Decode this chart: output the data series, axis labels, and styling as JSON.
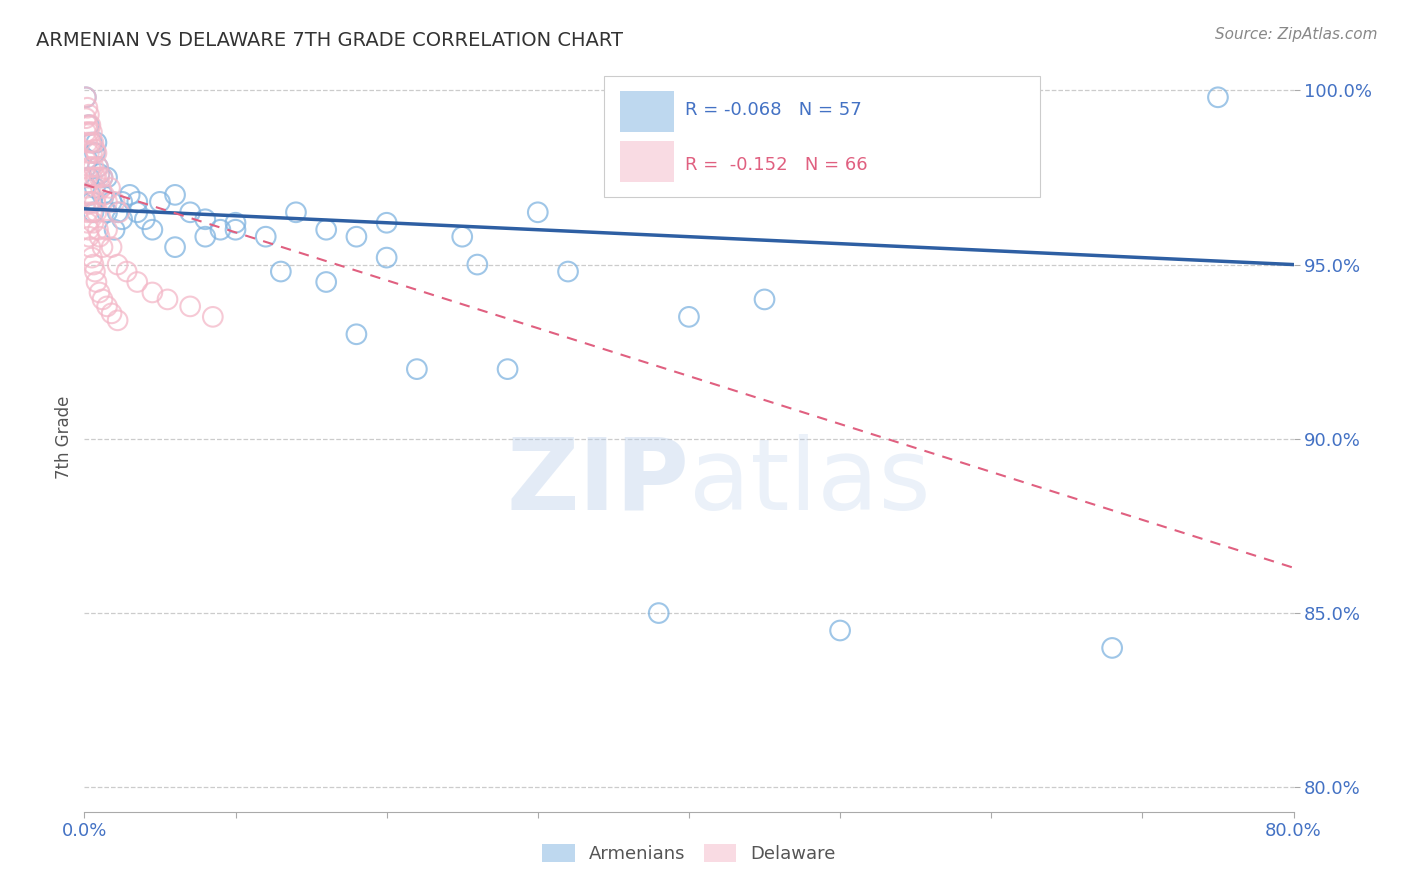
{
  "title": "ARMENIAN VS DELAWARE 7TH GRADE CORRELATION CHART",
  "source": "Source: ZipAtlas.com",
  "ylabel_label": "7th Grade",
  "xlim": [
    0.0,
    0.8
  ],
  "ylim": [
    0.793,
    1.008
  ],
  "ytick_positions": [
    0.8,
    0.85,
    0.9,
    0.95,
    1.0
  ],
  "ytick_labels": [
    "80.0%",
    "85.0%",
    "90.0%",
    "95.0%",
    "100.0%"
  ],
  "xtick_positions": [
    0.0,
    0.1,
    0.2,
    0.3,
    0.4,
    0.5,
    0.6,
    0.7,
    0.8
  ],
  "xtick_labels": [
    "0.0%",
    "",
    "",
    "",
    "",
    "",
    "",
    "",
    "80.0%"
  ],
  "grid_color": "#cccccc",
  "background_color": "#ffffff",
  "blue_color": "#7fb3e0",
  "pink_color": "#f4b8c8",
  "blue_line_color": "#2e5fa3",
  "pink_line_color": "#e06080",
  "R_blue": -0.068,
  "N_blue": 57,
  "R_pink": -0.152,
  "N_pink": 66,
  "blue_line_x0": 0.0,
  "blue_line_y0": 0.966,
  "blue_line_x1": 0.8,
  "blue_line_y1": 0.95,
  "pink_line_x0": 0.0,
  "pink_line_y0": 0.973,
  "pink_line_x1": 0.8,
  "pink_line_y1": 0.863,
  "blue_x": [
    0.001,
    0.002,
    0.003,
    0.004,
    0.005,
    0.006,
    0.007,
    0.008,
    0.01,
    0.012,
    0.015,
    0.018,
    0.022,
    0.025,
    0.03,
    0.035,
    0.04,
    0.05,
    0.06,
    0.07,
    0.08,
    0.09,
    0.1,
    0.12,
    0.14,
    0.16,
    0.18,
    0.2,
    0.25,
    0.3,
    0.003,
    0.005,
    0.007,
    0.009,
    0.012,
    0.015,
    0.02,
    0.025,
    0.035,
    0.045,
    0.06,
    0.08,
    0.1,
    0.13,
    0.16,
    0.2,
    0.26,
    0.32,
    0.4,
    0.45,
    0.18,
    0.22,
    0.28,
    0.38,
    0.5,
    0.68,
    0.75
  ],
  "blue_y": [
    0.998,
    0.98,
    0.975,
    0.97,
    0.968,
    0.965,
    0.972,
    0.985,
    0.976,
    0.97,
    0.975,
    0.968,
    0.965,
    0.968,
    0.97,
    0.965,
    0.963,
    0.968,
    0.97,
    0.965,
    0.963,
    0.96,
    0.962,
    0.958,
    0.965,
    0.96,
    0.958,
    0.962,
    0.958,
    0.965,
    0.99,
    0.985,
    0.982,
    0.978,
    0.975,
    0.965,
    0.96,
    0.963,
    0.968,
    0.96,
    0.955,
    0.958,
    0.96,
    0.948,
    0.945,
    0.952,
    0.95,
    0.948,
    0.935,
    0.94,
    0.93,
    0.92,
    0.92,
    0.85,
    0.845,
    0.84,
    0.998
  ],
  "pink_x": [
    0.001,
    0.001,
    0.001,
    0.002,
    0.002,
    0.002,
    0.003,
    0.003,
    0.003,
    0.004,
    0.004,
    0.004,
    0.005,
    0.005,
    0.005,
    0.006,
    0.006,
    0.007,
    0.007,
    0.008,
    0.008,
    0.009,
    0.01,
    0.011,
    0.012,
    0.013,
    0.015,
    0.017,
    0.02,
    0.023,
    0.001,
    0.002,
    0.003,
    0.004,
    0.005,
    0.006,
    0.007,
    0.008,
    0.009,
    0.01,
    0.012,
    0.015,
    0.018,
    0.022,
    0.028,
    0.035,
    0.045,
    0.055,
    0.07,
    0.085,
    0.001,
    0.001,
    0.002,
    0.002,
    0.003,
    0.003,
    0.004,
    0.005,
    0.006,
    0.007,
    0.008,
    0.01,
    0.012,
    0.015,
    0.018,
    0.022
  ],
  "pink_y": [
    0.998,
    0.992,
    0.988,
    0.995,
    0.99,
    0.985,
    0.993,
    0.988,
    0.982,
    0.99,
    0.985,
    0.978,
    0.988,
    0.982,
    0.975,
    0.985,
    0.978,
    0.983,
    0.975,
    0.982,
    0.975,
    0.978,
    0.975,
    0.972,
    0.975,
    0.97,
    0.968,
    0.972,
    0.968,
    0.965,
    0.98,
    0.975,
    0.97,
    0.968,
    0.965,
    0.962,
    0.968,
    0.965,
    0.96,
    0.958,
    0.955,
    0.96,
    0.955,
    0.95,
    0.948,
    0.945,
    0.942,
    0.94,
    0.938,
    0.935,
    0.972,
    0.968,
    0.965,
    0.962,
    0.96,
    0.958,
    0.955,
    0.952,
    0.95,
    0.948,
    0.945,
    0.942,
    0.94,
    0.938,
    0.936,
    0.934
  ]
}
